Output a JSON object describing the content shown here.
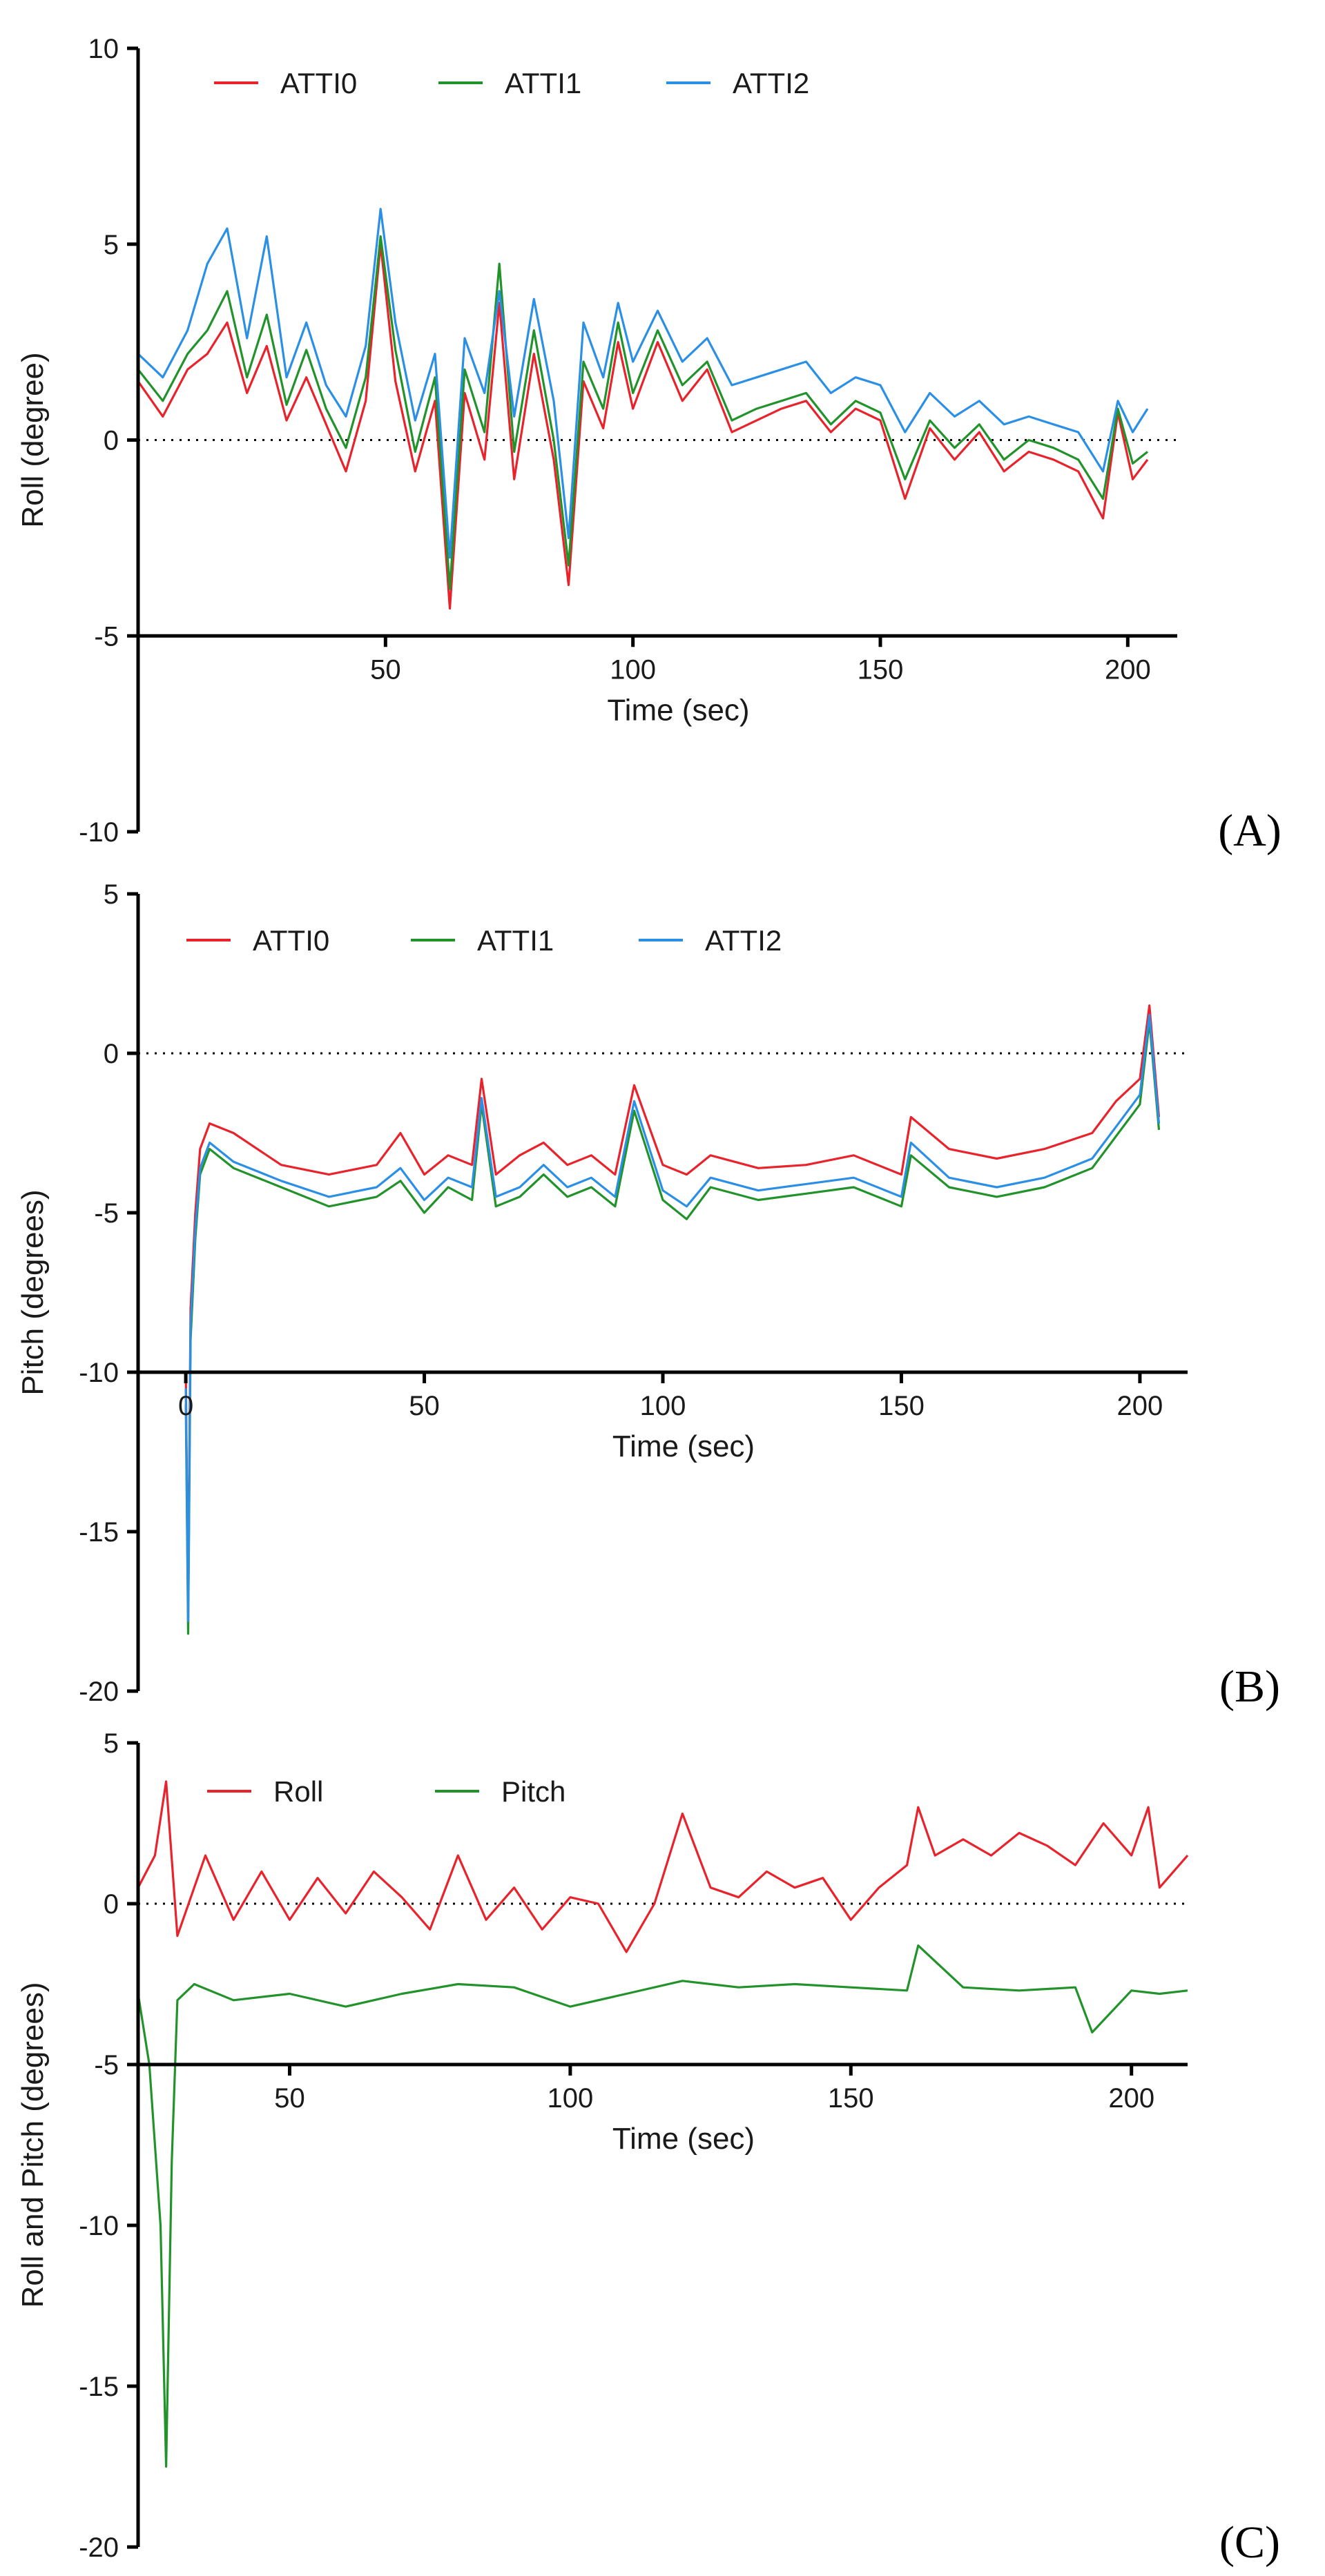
{
  "colors": {
    "ATTI0": "#e8232b",
    "ATTI1": "#22922b",
    "ATTI2": "#2b8fe6",
    "Roll": "#e8232b",
    "Pitch": "#22922b",
    "axis": "#000000",
    "zero_line": "#000000"
  },
  "chart_data": [
    {
      "type": "line",
      "panel_label": "(A)",
      "title": "",
      "xlabel": "Time (sec)",
      "ylabel": "Roll (degree)",
      "xlim": [
        0,
        210
      ],
      "ylim": [
        -10,
        10
      ],
      "x_axis_at_y": -5,
      "x_ticks": [
        50,
        100,
        150,
        200
      ],
      "y_ticks": [
        10,
        5,
        0,
        -5,
        -10
      ],
      "legend": [
        "ATTI0",
        "ATTI1",
        "ATTI2"
      ],
      "legend_position": "top-left",
      "reference_line_y": 0,
      "series": [
        {
          "name": "ATTI0",
          "x": [
            0,
            5,
            10,
            14,
            18,
            22,
            26,
            30,
            34,
            38,
            42,
            46,
            49,
            52,
            56,
            60,
            63,
            66,
            70,
            73,
            76,
            80,
            84,
            87,
            90,
            94,
            97,
            100,
            105,
            110,
            115,
            120,
            125,
            130,
            135,
            140,
            145,
            150,
            155,
            160,
            165,
            170,
            175,
            180,
            185,
            190,
            195,
            198,
            201,
            204
          ],
          "values": [
            1.5,
            0.6,
            1.8,
            2.2,
            3.0,
            1.2,
            2.4,
            0.5,
            1.6,
            0.4,
            -0.8,
            1.0,
            5.0,
            1.5,
            -0.8,
            1.0,
            -4.3,
            1.2,
            -0.5,
            3.5,
            -1.0,
            2.2,
            -0.5,
            -3.7,
            1.5,
            0.3,
            2.5,
            0.8,
            2.5,
            1.0,
            1.8,
            0.2,
            0.5,
            0.8,
            1.0,
            0.2,
            0.8,
            0.5,
            -1.5,
            0.3,
            -0.5,
            0.2,
            -0.8,
            -0.3,
            -0.5,
            -0.8,
            -2.0,
            0.7,
            -1.0,
            -0.5
          ]
        },
        {
          "name": "ATTI1",
          "x": [
            0,
            5,
            10,
            14,
            18,
            22,
            26,
            30,
            34,
            38,
            42,
            46,
            49,
            52,
            56,
            60,
            63,
            66,
            70,
            73,
            76,
            80,
            84,
            87,
            90,
            94,
            97,
            100,
            105,
            110,
            115,
            120,
            125,
            130,
            135,
            140,
            145,
            150,
            155,
            160,
            165,
            170,
            175,
            180,
            185,
            190,
            195,
            198,
            201,
            204
          ],
          "values": [
            1.8,
            1.0,
            2.2,
            2.8,
            3.8,
            1.6,
            3.2,
            0.9,
            2.3,
            0.8,
            -0.2,
            1.6,
            5.2,
            2.3,
            -0.3,
            1.6,
            -3.8,
            1.8,
            0.2,
            4.5,
            -0.3,
            2.8,
            0.0,
            -3.2,
            2.0,
            0.8,
            3.0,
            1.2,
            2.8,
            1.4,
            2.0,
            0.5,
            0.8,
            1.0,
            1.2,
            0.4,
            1.0,
            0.7,
            -1.0,
            0.5,
            -0.2,
            0.4,
            -0.5,
            0.0,
            -0.2,
            -0.5,
            -1.5,
            0.8,
            -0.6,
            -0.3
          ]
        },
        {
          "name": "ATTI2",
          "x": [
            0,
            5,
            10,
            14,
            18,
            22,
            26,
            30,
            34,
            38,
            42,
            46,
            49,
            52,
            56,
            60,
            63,
            66,
            70,
            73,
            76,
            80,
            84,
            87,
            90,
            94,
            97,
            100,
            105,
            110,
            115,
            120,
            125,
            130,
            135,
            140,
            145,
            150,
            155,
            160,
            165,
            170,
            175,
            180,
            185,
            190,
            195,
            198,
            201,
            204
          ],
          "values": [
            2.2,
            1.6,
            2.8,
            4.5,
            5.4,
            2.6,
            5.2,
            1.6,
            3.0,
            1.4,
            0.6,
            2.4,
            5.9,
            3.0,
            0.5,
            2.2,
            -3.0,
            2.6,
            1.2,
            3.8,
            0.6,
            3.6,
            1.0,
            -2.5,
            3.0,
            1.6,
            3.5,
            2.0,
            3.3,
            2.0,
            2.6,
            1.4,
            1.6,
            1.8,
            2.0,
            1.2,
            1.6,
            1.4,
            0.2,
            1.2,
            0.6,
            1.0,
            0.4,
            0.6,
            0.4,
            0.2,
            -0.8,
            1.0,
            0.2,
            0.8
          ]
        }
      ]
    },
    {
      "type": "line",
      "panel_label": "(B)",
      "title": "",
      "xlabel": "Time (sec)",
      "ylabel": "Pitch (degrees)",
      "xlim": [
        -10,
        210
      ],
      "ylim": [
        -20,
        5
      ],
      "x_axis_at_y": -10,
      "x_ticks": [
        0,
        50,
        100,
        150,
        200
      ],
      "y_ticks": [
        5,
        0,
        -5,
        -10,
        -15,
        -20
      ],
      "legend": [
        "ATTI0",
        "ATTI1",
        "ATTI2"
      ],
      "legend_position": "top-left",
      "reference_line_y": 0,
      "series": [
        {
          "name": "ATTI0",
          "x": [
            0,
            0.5,
            1,
            2,
            3,
            5,
            10,
            20,
            30,
            40,
            45,
            50,
            55,
            60,
            62,
            65,
            70,
            75,
            80,
            85,
            90,
            94,
            100,
            105,
            110,
            120,
            130,
            140,
            150,
            152,
            160,
            170,
            180,
            190,
            195,
            200,
            202,
            204
          ],
          "values": [
            -10,
            -17.5,
            -8,
            -5,
            -3,
            -2.2,
            -2.5,
            -3.5,
            -3.8,
            -3.5,
            -2.5,
            -3.8,
            -3.2,
            -3.5,
            -0.8,
            -3.8,
            -3.2,
            -2.8,
            -3.5,
            -3.2,
            -3.8,
            -1.0,
            -3.5,
            -3.8,
            -3.2,
            -3.6,
            -3.5,
            -3.2,
            -3.8,
            -2.0,
            -3.0,
            -3.3,
            -3.0,
            -2.5,
            -1.5,
            -0.8,
            1.5,
            -2.0
          ]
        },
        {
          "name": "ATTI1",
          "x": [
            0,
            0.5,
            1,
            2,
            3,
            5,
            10,
            20,
            30,
            40,
            45,
            50,
            55,
            60,
            62,
            65,
            70,
            75,
            80,
            85,
            90,
            94,
            100,
            105,
            110,
            120,
            130,
            140,
            150,
            152,
            160,
            170,
            180,
            190,
            195,
            200,
            202,
            204
          ],
          "values": [
            -11,
            -18.2,
            -9,
            -5.8,
            -3.8,
            -3.0,
            -3.6,
            -4.2,
            -4.8,
            -4.5,
            -4.0,
            -5.0,
            -4.2,
            -4.6,
            -1.6,
            -4.8,
            -4.5,
            -3.8,
            -4.5,
            -4.2,
            -4.8,
            -1.8,
            -4.6,
            -5.2,
            -4.2,
            -4.6,
            -4.4,
            -4.2,
            -4.8,
            -3.2,
            -4.2,
            -4.5,
            -4.2,
            -3.6,
            -2.6,
            -1.6,
            1.0,
            -2.4
          ]
        },
        {
          "name": "ATTI2",
          "x": [
            0,
            0.5,
            1,
            2,
            3,
            5,
            10,
            20,
            30,
            40,
            45,
            50,
            55,
            60,
            62,
            65,
            70,
            75,
            80,
            85,
            90,
            94,
            100,
            105,
            110,
            120,
            130,
            140,
            150,
            152,
            160,
            170,
            180,
            190,
            195,
            200,
            202,
            204
          ],
          "values": [
            -10.5,
            -17.8,
            -8.5,
            -5.5,
            -3.6,
            -2.8,
            -3.4,
            -4.0,
            -4.5,
            -4.2,
            -3.6,
            -4.6,
            -3.9,
            -4.2,
            -1.4,
            -4.5,
            -4.2,
            -3.5,
            -4.2,
            -3.9,
            -4.5,
            -1.5,
            -4.3,
            -4.8,
            -3.9,
            -4.3,
            -4.1,
            -3.9,
            -4.5,
            -2.8,
            -3.9,
            -4.2,
            -3.9,
            -3.3,
            -2.3,
            -1.3,
            1.2,
            -2.2
          ]
        }
      ]
    },
    {
      "type": "line",
      "panel_label": "(C)",
      "title": "",
      "xlabel": "Time (sec)",
      "ylabel": "Roll and Pitch (degrees)",
      "xlim": [
        23,
        210
      ],
      "ylim": [
        -20,
        5
      ],
      "x_axis_at_y": -5,
      "x_ticks": [
        50,
        100,
        150,
        200
      ],
      "y_ticks": [
        5,
        0,
        -5,
        -10,
        -15,
        -20
      ],
      "legend": [
        "Roll",
        "Pitch"
      ],
      "legend_position": "top-left",
      "reference_line_y": 0,
      "series": [
        {
          "name": "Roll",
          "x": [
            23,
            26,
            28,
            30,
            35,
            40,
            45,
            50,
            55,
            60,
            65,
            70,
            75,
            80,
            85,
            90,
            95,
            100,
            105,
            110,
            115,
            120,
            125,
            130,
            135,
            140,
            145,
            150,
            155,
            160,
            162,
            165,
            170,
            175,
            180,
            185,
            190,
            195,
            200,
            203,
            205,
            210
          ],
          "values": [
            0.5,
            1.5,
            3.8,
            -1.0,
            1.5,
            -0.5,
            1.0,
            -0.5,
            0.8,
            -0.3,
            1.0,
            0.2,
            -0.8,
            1.5,
            -0.5,
            0.5,
            -0.8,
            0.2,
            0.0,
            -1.5,
            0.0,
            2.8,
            0.5,
            0.2,
            1.0,
            0.5,
            0.8,
            -0.5,
            0.5,
            1.2,
            3.0,
            1.5,
            2.0,
            1.5,
            2.2,
            1.8,
            1.2,
            2.5,
            1.5,
            3.0,
            0.5,
            1.5
          ]
        },
        {
          "name": "Pitch",
          "x": [
            23,
            25,
            27,
            28,
            29,
            30,
            33,
            40,
            50,
            60,
            70,
            80,
            90,
            100,
            110,
            120,
            130,
            140,
            150,
            160,
            162,
            170,
            180,
            190,
            193,
            200,
            205,
            210
          ],
          "values": [
            -2.8,
            -5.0,
            -10.0,
            -17.5,
            -8.0,
            -3.0,
            -2.5,
            -3.0,
            -2.8,
            -3.2,
            -2.8,
            -2.5,
            -2.6,
            -3.2,
            -2.8,
            -2.4,
            -2.6,
            -2.5,
            -2.6,
            -2.7,
            -1.3,
            -2.6,
            -2.7,
            -2.6,
            -4.0,
            -2.7,
            -2.8,
            -2.7
          ]
        }
      ]
    }
  ]
}
